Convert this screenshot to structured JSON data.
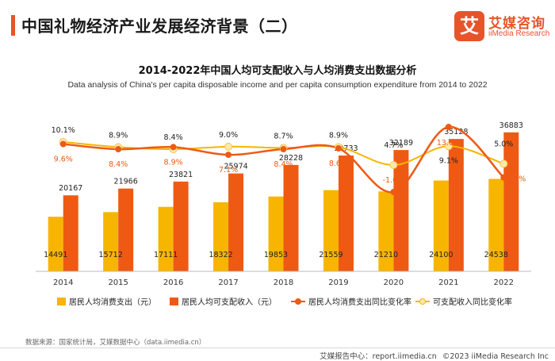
{
  "header": {
    "title": "中国礼物经济产业发展经济背景（二）",
    "accent_color": "#e8542a"
  },
  "logo": {
    "mark": "艾",
    "name": "艾媒咨询",
    "name_en": "iiMedia Research"
  },
  "chart_data": {
    "type": "bar",
    "title": "2014-2022年中国人均可支配收入与人均消费支出数据分析",
    "subtitle": "Data analysis of China's per capita disposable income and per capita consumption expenditure from 2014 to 2022",
    "categories": [
      "2014",
      "2015",
      "2016",
      "2017",
      "2018",
      "2019",
      "2020",
      "2021",
      "2022"
    ],
    "series": [
      {
        "name": "居民人均消费支出（元）",
        "kind": "bar",
        "color": "#f7b500",
        "values": [
          14491,
          15712,
          17111,
          18322,
          19853,
          21559,
          21210,
          24100,
          24538
        ]
      },
      {
        "name": "居民人均可支配收入（元）",
        "kind": "bar",
        "color": "#ee5a14",
        "values": [
          20167,
          21966,
          23821,
          25974,
          28228,
          30733,
          32189,
          35128,
          36883
        ]
      },
      {
        "name": "居民人均消费支出同比变化率",
        "kind": "line",
        "color": "#ee5a14",
        "values": [
          9.6,
          8.4,
          8.9,
          7.1,
          8.4,
          8.6,
          -1.6,
          13.6,
          1.8
        ],
        "labels": [
          "9.6%",
          "8.4%",
          "8.9%",
          "7.1%",
          "8.4%",
          "8.6%",
          "-1.6%",
          "13.6%",
          "1.8%"
        ]
      },
      {
        "name": "可支配收入同比变化率",
        "kind": "line",
        "color": "#f7b500",
        "values": [
          10.1,
          8.9,
          8.4,
          9.0,
          8.7,
          8.9,
          4.7,
          9.1,
          5.0
        ],
        "labels": [
          "10.1%",
          "8.9%",
          "8.4%",
          "9.0%",
          "8.7%",
          "8.9%",
          "4.7%",
          "9.1%",
          "5.0%"
        ]
      }
    ],
    "legend_position": "bottom",
    "grid": false
  },
  "source": "数据来源：国家统计局，艾媒数据中心（data.iimedia.cn）",
  "footer": {
    "platform": "艾媒报告中心：report.iimedia.cn",
    "copyright": "©2023  iiMedia Research  Inc"
  }
}
